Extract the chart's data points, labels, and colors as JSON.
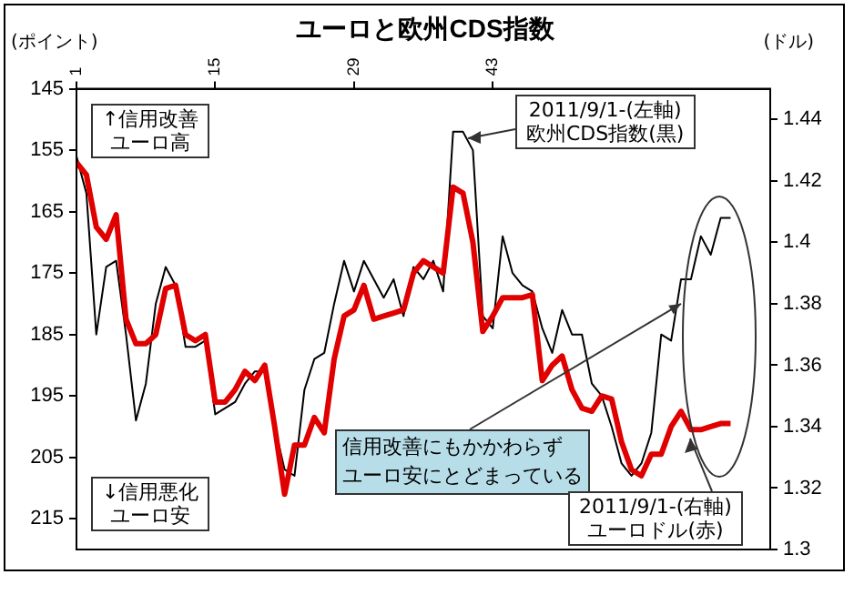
{
  "chart_data": {
    "type": "line",
    "title": "ユーロと欧州CDS指数",
    "ylabel": "(ポイント)",
    "y2label": "(ドル)",
    "x": [
      1,
      2,
      3,
      4,
      5,
      6,
      7,
      8,
      9,
      10,
      11,
      12,
      13,
      14,
      15,
      16,
      17,
      18,
      19,
      20,
      21,
      22,
      23,
      24,
      25,
      26,
      27,
      28,
      29,
      30,
      31,
      32,
      33,
      34,
      35,
      36,
      37,
      38,
      39,
      40,
      41,
      42,
      43,
      44,
      45,
      46,
      47,
      48,
      49,
      50,
      51,
      52,
      53,
      54,
      55,
      56,
      57,
      58,
      59,
      60,
      61,
      62,
      63,
      64,
      65,
      66,
      67
    ],
    "xlim": [
      1,
      71
    ],
    "xticks": [
      1,
      15,
      29,
      43
    ],
    "ylim": [
      220,
      145
    ],
    "yticks": [
      145,
      155,
      165,
      175,
      185,
      195,
      205,
      215
    ],
    "y2lim": [
      1.3,
      1.45
    ],
    "y2ticks": [
      1.3,
      1.32,
      1.34,
      1.36,
      1.38,
      1.4,
      1.42,
      1.44
    ],
    "grid": false,
    "legend": false,
    "marker": "none",
    "line_style": "solid",
    "series": [
      {
        "color": "#000000",
        "values": [
          156,
          162,
          185,
          174,
          173,
          185,
          199,
          193,
          180,
          174,
          177,
          187,
          187,
          186,
          198,
          197,
          196,
          193,
          191,
          191,
          200,
          207,
          208,
          194,
          189,
          188,
          180,
          173,
          178,
          173,
          176,
          179,
          176,
          182,
          174,
          176,
          173,
          178,
          152,
          152,
          155,
          182,
          184,
          169,
          175,
          177,
          178,
          184,
          188,
          181,
          185,
          185,
          193,
          195,
          200,
          206,
          208,
          206,
          201,
          185,
          186,
          176,
          176,
          169,
          172,
          166,
          166
        ]
      },
      {
        "color": "#e00000",
        "axis": "y2",
        "values": [
          1.426,
          1.422,
          1.405,
          1.401,
          1.409,
          1.375,
          1.367,
          1.367,
          1.37,
          1.385,
          1.386,
          1.37,
          1.368,
          1.37,
          1.348,
          1.348,
          1.352,
          1.358,
          1.355,
          1.36,
          1.34,
          1.318,
          1.334,
          1.334,
          1.343,
          1.338,
          1.362,
          1.376,
          1.378,
          1.386,
          1.375,
          1.376,
          1.377,
          1.378,
          1.39,
          1.394,
          1.392,
          1.39,
          1.418,
          1.416,
          1.4,
          1.371,
          1.376,
          1.382,
          1.382,
          1.382,
          1.383,
          1.355,
          1.36,
          1.363,
          1.352,
          1.346,
          1.345,
          1.35,
          1.349,
          1.335,
          1.326,
          1.324,
          1.331,
          1.331,
          1.34,
          1.345,
          1.339,
          1.339,
          1.34,
          1.341,
          1.341
        ]
      }
    ],
    "annotations": [
      "↑信用改善ユーロ高",
      "↓信用悪化ユーロ安",
      "2011/9/1-(左軸)\n欧州CDS指数(黒)",
      {
        "text": "信用改善にもかかわらずユーロ安にとどまっている",
        "x": 62,
        "y": 180
      },
      "2011/9/1-(右軸)\nユーロドル(赤)"
    ]
  }
}
